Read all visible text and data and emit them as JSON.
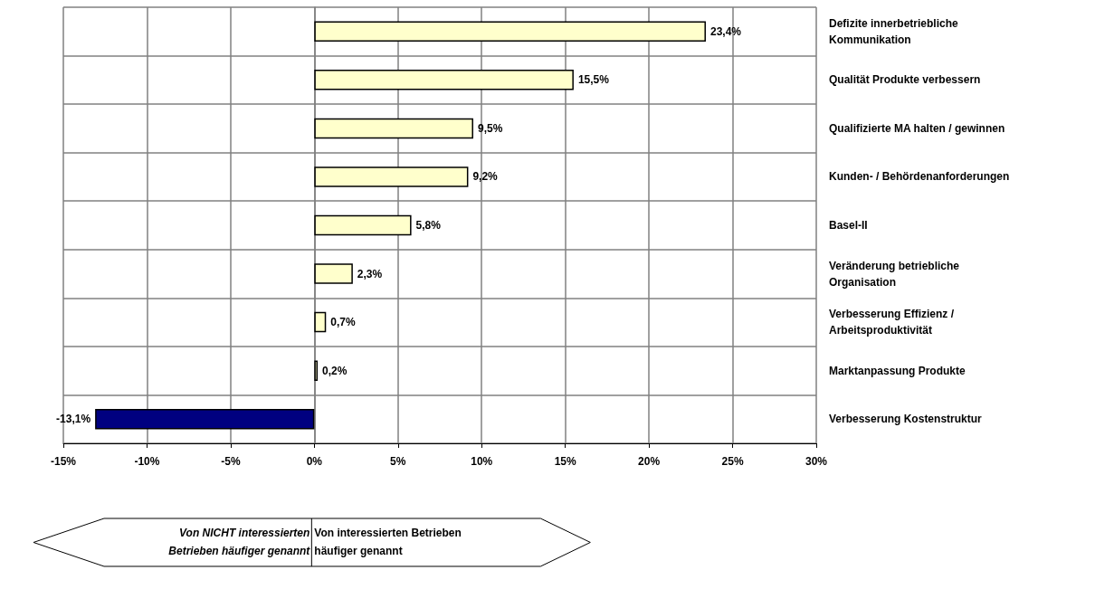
{
  "chart_data": {
    "type": "bar",
    "orientation": "horizontal",
    "categories": [
      "Defizite innerbetriebliche Kommunikation",
      "Qualität Produkte verbessern",
      "Qualifizierte MA halten / gewinnen",
      "Kunden- / Behördenanforderungen",
      "Basel-II",
      "Veränderung betriebliche Organisation",
      "Verbesserung Effizienz / Arbeitsproduktivität",
      "Marktanpassung Produkte",
      "Verbesserung Kostenstruktur"
    ],
    "values": [
      23.4,
      15.5,
      9.5,
      9.2,
      5.8,
      2.3,
      0.7,
      0.2,
      -13.1
    ],
    "value_labels": [
      "23,4%",
      "15,5%",
      "9,5%",
      "9,2%",
      "5,8%",
      "2,3%",
      "0,7%",
      "0,2%",
      "-13,1%"
    ],
    "colors": [
      "#ffffcc",
      "#ffffcc",
      "#ffffcc",
      "#ffffcc",
      "#ffffcc",
      "#ffffcc",
      "#ffffcc",
      "#ffffcc",
      "#000080"
    ],
    "xlim": [
      -15,
      30
    ],
    "xticks": [
      {
        "value": -15,
        "label": "-15%"
      },
      {
        "value": -10,
        "label": "-10%"
      },
      {
        "value": -5,
        "label": "-5%"
      },
      {
        "value": 0,
        "label": "0%"
      },
      {
        "value": 5,
        "label": "5%"
      },
      {
        "value": 10,
        "label": "10%"
      },
      {
        "value": 15,
        "label": "15%"
      },
      {
        "value": 20,
        "label": "20%"
      },
      {
        "value": 25,
        "label": "25%"
      },
      {
        "value": 30,
        "label": "30%"
      }
    ],
    "annotations": [
      "Von NICHT interessierten Betrieben häufiger genannt",
      "Von interessierten Betrieben häufiger genannt"
    ],
    "grid": true
  }
}
